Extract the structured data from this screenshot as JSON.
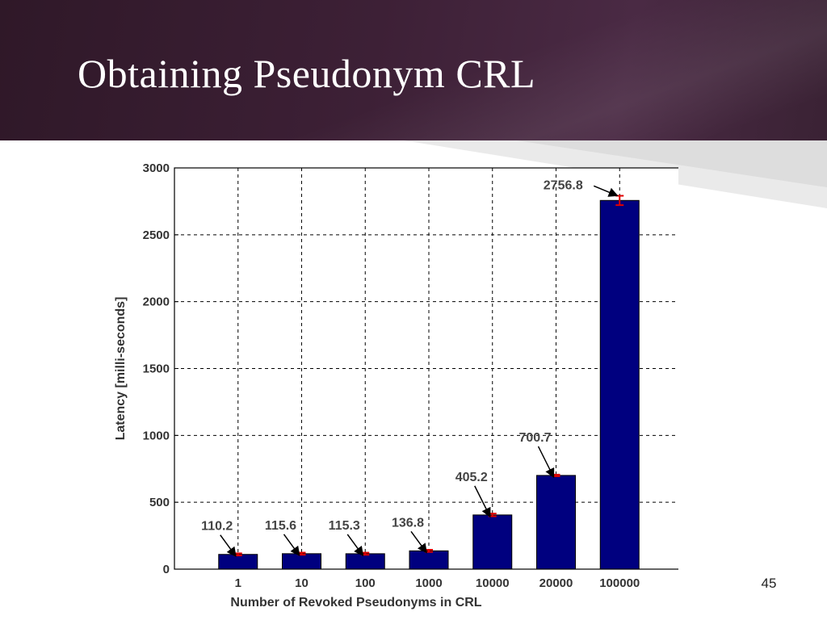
{
  "slide": {
    "title": "Obtaining Pseudonym CRL",
    "page_number": "45"
  },
  "colors": {
    "header": "#3d2036",
    "bar_fill": "#00007f",
    "error_bar": "#e00000",
    "grid": "#000000"
  },
  "chart_data": {
    "type": "bar",
    "title": "",
    "xlabel": "Number of Revoked Pseudonyms in CRL",
    "ylabel": "Latency [milli-seconds]",
    "categories": [
      "1",
      "10",
      "100",
      "1000",
      "10000",
      "20000",
      "100000"
    ],
    "values": [
      110.2,
      115.6,
      115.3,
      136.8,
      405.2,
      700.7,
      2756.8
    ],
    "data_labels": [
      "110.2",
      "115.6",
      "115.3",
      "136.8",
      "405.2",
      "700.7",
      "2756.8"
    ],
    "error": [
      8,
      8,
      8,
      8,
      10,
      6,
      35
    ],
    "ylim": [
      0,
      3000
    ],
    "yticks": [
      0,
      500,
      1000,
      1500,
      2000,
      2500,
      3000
    ],
    "ytick_labels": [
      "0",
      "500",
      "1000",
      "1500",
      "2000",
      "2500",
      "3000"
    ],
    "grid": true,
    "legend": "none"
  }
}
